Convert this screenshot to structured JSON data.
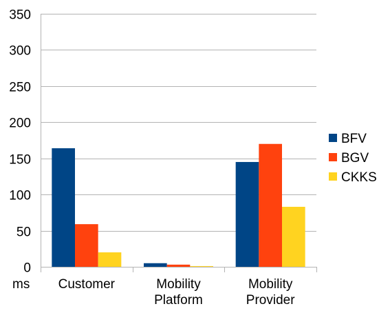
{
  "chart_data": {
    "type": "bar",
    "title": "",
    "xlabel": "",
    "ylabel": "ms",
    "ylim": [
      0,
      350
    ],
    "yticks": [
      0,
      50,
      100,
      150,
      200,
      250,
      300,
      350
    ],
    "categories": [
      [
        "Customer"
      ],
      [
        "Mobility",
        "Platform"
      ],
      [
        "Mobility",
        "Provider"
      ]
    ],
    "series": [
      {
        "name": "BFV",
        "color": "#004586",
        "values": [
          164,
          5,
          145
        ]
      },
      {
        "name": "BGV",
        "color": "#ff420e",
        "values": [
          59,
          3,
          170
        ]
      },
      {
        "name": "CKKS",
        "color": "#ffd320",
        "values": [
          20,
          1,
          83
        ]
      }
    ],
    "grid": true,
    "legend_position": "right"
  }
}
